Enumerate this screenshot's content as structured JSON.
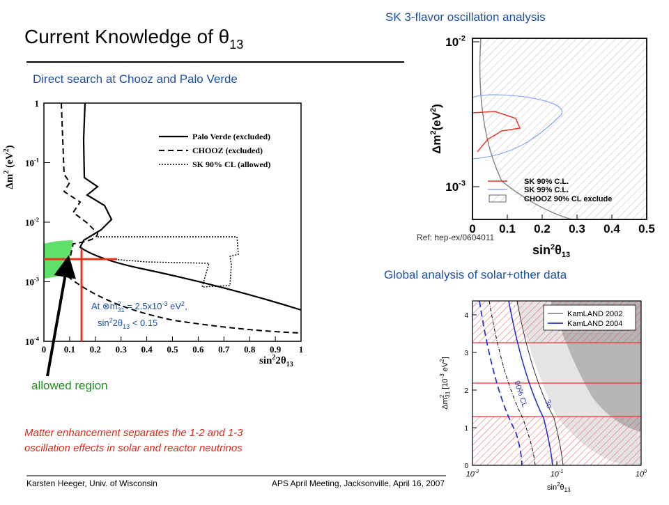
{
  "title": {
    "text": "Current Knowledge of θ",
    "sub": "13"
  },
  "left_heading": "Direct search at Chooz and Palo Verde",
  "left_plot": {
    "legend": [
      "Palo Verde (excluded)",
      "CHOOZ (excluded)",
      "SK 90% CL (allowed)"
    ],
    "yticks": [
      [
        "1"
      ],
      [
        "10",
        "-1"
      ],
      [
        "10",
        "-2"
      ],
      [
        "10",
        "-3"
      ],
      [
        "10",
        "-4"
      ]
    ],
    "xticks": [
      "0",
      "0.1",
      "0.2",
      "0.3",
      "0.4",
      "0.5",
      "0.6",
      "0.7",
      "0.8",
      "0.9",
      "1"
    ],
    "y_label": [
      "Δm",
      "2",
      " (eV",
      "2",
      ")"
    ],
    "x_label": [
      "sin",
      "2",
      "2θ",
      "13"
    ]
  },
  "annotation": {
    "line1": [
      "At ⊗m",
      "2",
      "31",
      " = 2.5x10",
      "-3",
      " eV",
      "2",
      ","
    ],
    "line2": [
      "sin",
      "2",
      "2θ",
      "13",
      " < 0.15"
    ]
  },
  "allowed_label": "allowed region",
  "note": [
    "Matter enhancement separates the 1-2 and 1-3",
    "oscillation effects in solar and reactor neutrinos"
  ],
  "sk_heading": "SK 3-flavor oscillation analysis",
  "sk_plot": {
    "legend": [
      "SK 90% C.L.",
      "SK 99% C.L.",
      "CHOOZ 90% CL exclude"
    ],
    "yticks": [
      [
        "10",
        "-2"
      ],
      [
        "10",
        "-3"
      ]
    ],
    "xticks": [
      "0",
      "0.1",
      "0.2",
      "0.3",
      "0.4",
      "0.5"
    ],
    "y_label": [
      "Δm",
      "2",
      "(eV",
      "2",
      ")"
    ],
    "x_label": [
      "sin",
      "2",
      "θ",
      "13"
    ],
    "ref": "Ref: hep-ex/0604011"
  },
  "global_heading": "Global analysis of solar+other data",
  "global_plot": {
    "legend": [
      "KamLAND 2002",
      "KamLAND 2004"
    ],
    "yticks": [
      "0",
      "1",
      "2",
      "3",
      "4"
    ],
    "xticks": [
      [
        "10",
        "-2"
      ],
      [
        "10",
        "-1"
      ],
      [
        "10",
        "0"
      ]
    ],
    "y_label": [
      "Δm",
      "2",
      "31",
      " [10",
      "-3",
      " eV",
      "2",
      "]"
    ],
    "x_label": [
      "sin",
      "2",
      "θ",
      "13"
    ],
    "cl_label": "90% CL",
    "sigma_label": "3σ"
  },
  "footer": {
    "left": "Karsten Heeger, Univ. of Wisconsin",
    "right": "APS April Meeting, Jacksonville, April 16, 2007"
  }
}
